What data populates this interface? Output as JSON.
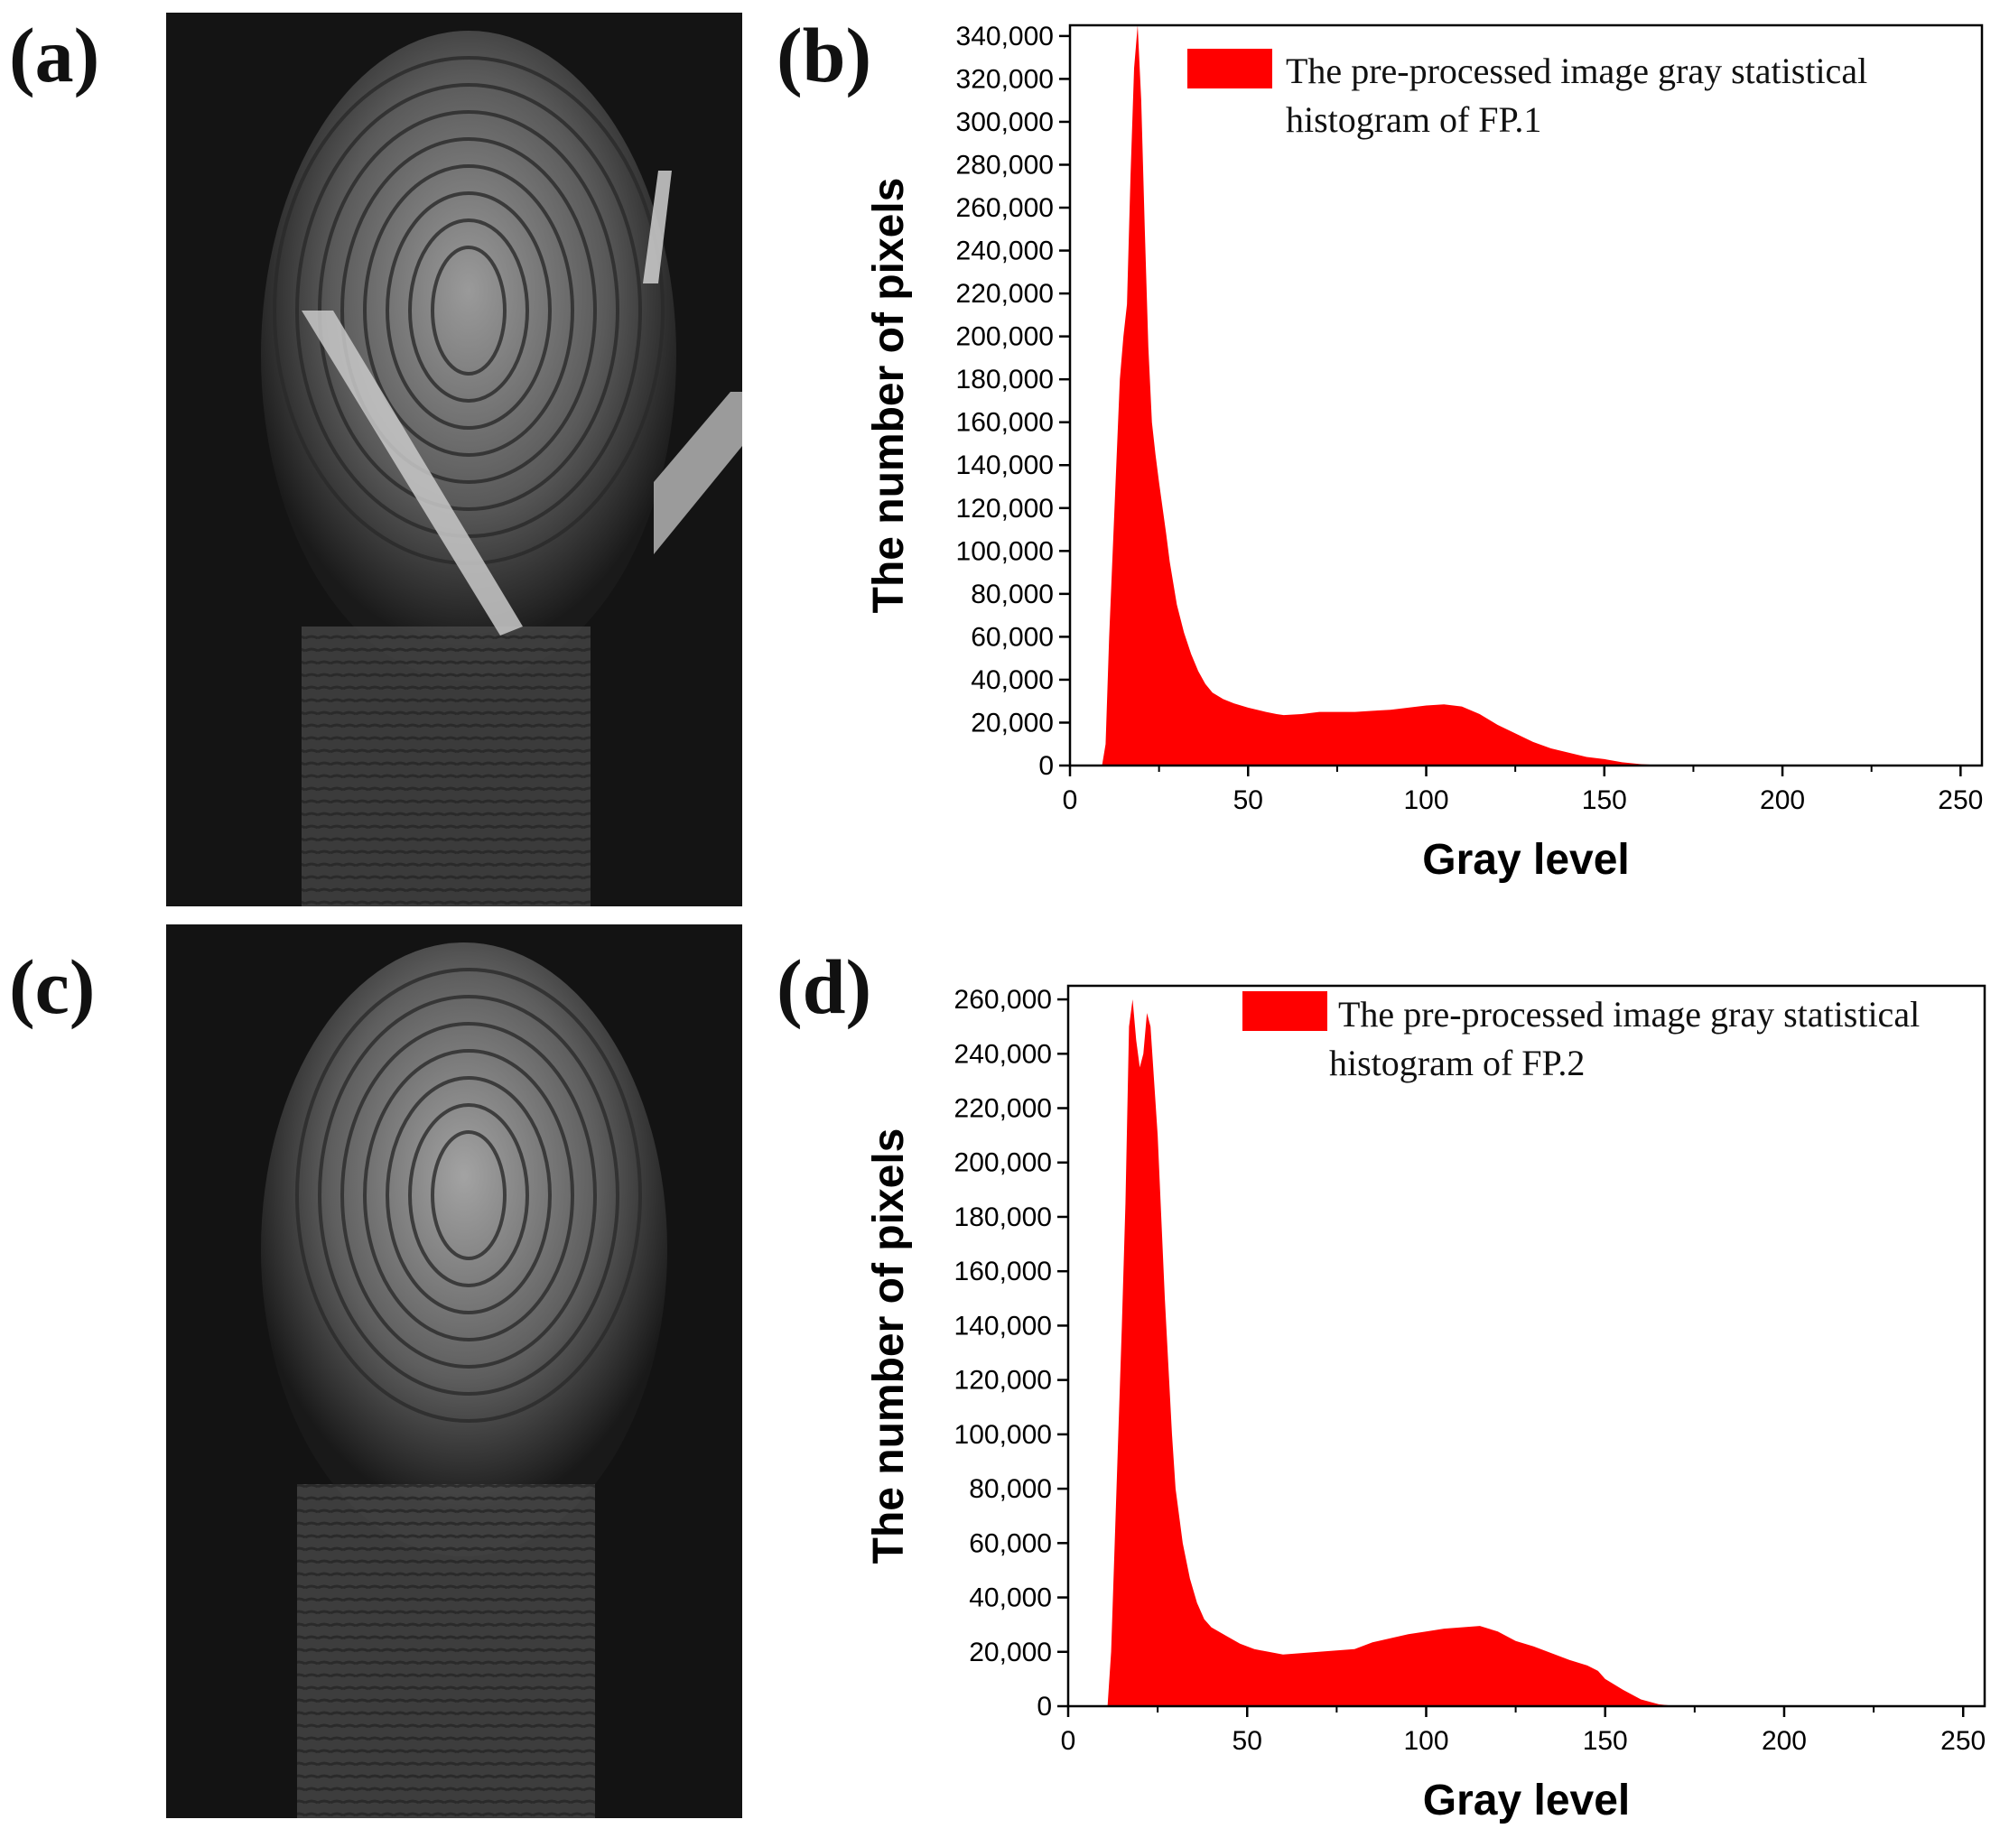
{
  "labels": {
    "a": "(a)",
    "b": "(b)",
    "c": "(c)",
    "d": "(d)"
  },
  "colors": {
    "bar": "#ff0000",
    "photo_background": "#121212"
  },
  "images": {
    "a": "fingerprint-photo",
    "c": "fingerprint-photo"
  },
  "chart_data": [
    {
      "type": "bar",
      "panel": "b",
      "xlabel": "Gray level",
      "ylabel": "The number of pixels",
      "xlim": [
        0,
        256
      ],
      "ylim": [
        0,
        345000
      ],
      "xticks": [
        0,
        50,
        100,
        150,
        200,
        250
      ],
      "yticks": [
        0,
        20000,
        40000,
        60000,
        80000,
        100000,
        120000,
        140000,
        160000,
        180000,
        200000,
        220000,
        240000,
        260000,
        280000,
        300000,
        320000,
        340000
      ],
      "ytick_labels": [
        "0",
        "20,000",
        "40,000",
        "60,000",
        "80,000",
        "100,000",
        "120,000",
        "140,000",
        "160,000",
        "180,000",
        "200,000",
        "220,000",
        "240,000",
        "260,000",
        "280,000",
        "300,000",
        "320,000",
        "340,000"
      ],
      "legend": {
        "lines": [
          "The pre-processed image gray statistical",
          "histogram of FP.1"
        ],
        "position": "top-right"
      },
      "points": [
        [
          0,
          0
        ],
        [
          9,
          0
        ],
        [
          10,
          10000
        ],
        [
          11,
          60000
        ],
        [
          12,
          100000
        ],
        [
          13,
          140000
        ],
        [
          14,
          180000
        ],
        [
          15,
          200000
        ],
        [
          16,
          215000
        ],
        [
          17,
          275000
        ],
        [
          18,
          325000
        ],
        [
          19,
          345000
        ],
        [
          20,
          310000
        ],
        [
          21,
          250000
        ],
        [
          22,
          195000
        ],
        [
          23,
          160000
        ],
        [
          24,
          145000
        ],
        [
          25,
          132000
        ],
        [
          26,
          120000
        ],
        [
          27,
          108000
        ],
        [
          28,
          95000
        ],
        [
          29,
          85000
        ],
        [
          30,
          75000
        ],
        [
          32,
          62000
        ],
        [
          34,
          52000
        ],
        [
          36,
          44000
        ],
        [
          38,
          38000
        ],
        [
          40,
          34000
        ],
        [
          43,
          31000
        ],
        [
          46,
          29000
        ],
        [
          50,
          27000
        ],
        [
          55,
          25000
        ],
        [
          58,
          24000
        ],
        [
          60,
          23500
        ],
        [
          65,
          24000
        ],
        [
          70,
          25000
        ],
        [
          75,
          25000
        ],
        [
          80,
          25000
        ],
        [
          85,
          25500
        ],
        [
          90,
          26000
        ],
        [
          95,
          27000
        ],
        [
          100,
          28000
        ],
        [
          105,
          28500
        ],
        [
          110,
          27500
        ],
        [
          115,
          24000
        ],
        [
          120,
          19000
        ],
        [
          125,
          15000
        ],
        [
          130,
          11000
        ],
        [
          135,
          8000
        ],
        [
          140,
          6000
        ],
        [
          145,
          4000
        ],
        [
          150,
          3000
        ],
        [
          155,
          1500
        ],
        [
          160,
          700
        ],
        [
          165,
          200
        ],
        [
          170,
          0
        ],
        [
          256,
          0
        ]
      ]
    },
    {
      "type": "bar",
      "panel": "d",
      "xlabel": "Gray level",
      "ylabel": "The number of pixels",
      "xlim": [
        0,
        256
      ],
      "ylim": [
        0,
        265000
      ],
      "xticks": [
        0,
        50,
        100,
        150,
        200,
        250
      ],
      "yticks": [
        0,
        20000,
        40000,
        60000,
        80000,
        100000,
        120000,
        140000,
        160000,
        180000,
        200000,
        220000,
        240000,
        260000
      ],
      "ytick_labels": [
        "0",
        "20,000",
        "40,000",
        "60,000",
        "80,000",
        "100,000",
        "120,000",
        "140,000",
        "160,000",
        "180,000",
        "200,000",
        "220,000",
        "240,000",
        "260,000"
      ],
      "legend": {
        "lines": [
          "The pre-processed image gray statistical",
          "histogram of FP.2"
        ],
        "position": "top-right"
      },
      "points": [
        [
          0,
          0
        ],
        [
          11,
          0
        ],
        [
          12,
          20000
        ],
        [
          13,
          60000
        ],
        [
          14,
          100000
        ],
        [
          15,
          140000
        ],
        [
          16,
          185000
        ],
        [
          17,
          250000
        ],
        [
          18,
          260000
        ],
        [
          19,
          245000
        ],
        [
          20,
          235000
        ],
        [
          21,
          240000
        ],
        [
          22,
          255000
        ],
        [
          23,
          250000
        ],
        [
          24,
          230000
        ],
        [
          25,
          210000
        ],
        [
          26,
          180000
        ],
        [
          27,
          150000
        ],
        [
          28,
          125000
        ],
        [
          29,
          100000
        ],
        [
          30,
          80000
        ],
        [
          32,
          60000
        ],
        [
          34,
          47000
        ],
        [
          36,
          38000
        ],
        [
          38,
          32000
        ],
        [
          40,
          29000
        ],
        [
          44,
          26000
        ],
        [
          48,
          23000
        ],
        [
          52,
          21000
        ],
        [
          56,
          20000
        ],
        [
          60,
          19000
        ],
        [
          65,
          19500
        ],
        [
          70,
          20000
        ],
        [
          75,
          20500
        ],
        [
          80,
          21000
        ],
        [
          85,
          23500
        ],
        [
          90,
          25000
        ],
        [
          95,
          26500
        ],
        [
          100,
          27500
        ],
        [
          105,
          28500
        ],
        [
          110,
          29000
        ],
        [
          115,
          29500
        ],
        [
          120,
          27500
        ],
        [
          125,
          24000
        ],
        [
          130,
          22000
        ],
        [
          135,
          19500
        ],
        [
          140,
          17000
        ],
        [
          145,
          15000
        ],
        [
          148,
          13000
        ],
        [
          150,
          10000
        ],
        [
          155,
          6000
        ],
        [
          160,
          2500
        ],
        [
          165,
          700
        ],
        [
          170,
          0
        ],
        [
          256,
          0
        ]
      ]
    }
  ]
}
